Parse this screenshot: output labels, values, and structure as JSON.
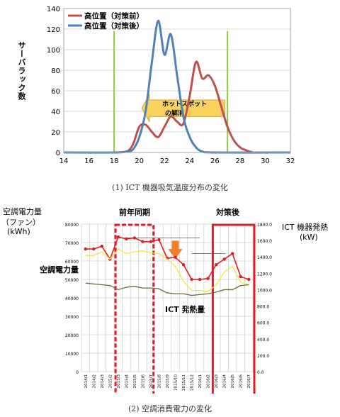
{
  "chart_data": [
    {
      "type": "line",
      "ylabel": "サーバラック数",
      "xlim": [
        14,
        32
      ],
      "ylim": [
        0,
        140
      ],
      "xticks": [
        14,
        16,
        18,
        20,
        22,
        24,
        26,
        28,
        30,
        32
      ],
      "yticks": [
        0,
        20,
        40,
        60,
        80,
        100,
        120,
        140
      ],
      "legend": "top-left",
      "series": [
        {
          "name": "高位置（対策前）",
          "color": "#c0504d",
          "x": [
            18.0,
            19.0,
            19.5,
            20.0,
            20.5,
            21.0,
            21.5,
            22.0,
            22.5,
            23.0,
            23.5,
            24.0,
            24.5,
            25.0,
            25.5,
            26.0,
            26.5,
            27.0,
            27.5,
            28.0,
            28.5,
            29.0
          ],
          "y": [
            0,
            1,
            8,
            25,
            27,
            20,
            15,
            25,
            35,
            30,
            28,
            55,
            88,
            72,
            75,
            65,
            45,
            25,
            12,
            5,
            2,
            0
          ]
        },
        {
          "name": "高位置（対策後）",
          "color": "#4f81bd",
          "x": [
            14.0,
            18.0,
            19.0,
            19.5,
            20.0,
            20.5,
            21.0,
            21.5,
            22.0,
            22.5,
            23.0,
            23.5,
            24.0,
            24.5,
            25.0,
            26.0,
            32.0
          ],
          "y": [
            0,
            0,
            1,
            3,
            15,
            40,
            88,
            128,
            95,
            115,
            75,
            35,
            15,
            5,
            1,
            0,
            0
          ]
        }
      ],
      "vlines": [
        18,
        27
      ],
      "annotation": "ホットスポットの解消"
    },
    {
      "type": "line",
      "left_axis": {
        "label_lines": [
          "空調電力量",
          "（ファン）",
          "(kWh)"
        ],
        "ylim": [
          0,
          80000
        ],
        "ticks": [
          "0",
          "10000",
          "20000",
          "30000",
          "40000",
          "50000",
          "60000",
          "70000",
          "80000"
        ]
      },
      "right_axis": {
        "label_lines": [
          "ICT 機器発熱",
          "(kW)"
        ],
        "ylim": [
          0,
          1800
        ],
        "ticks": [
          "0.0",
          "200.0",
          "400.0",
          "600.0",
          "800.0",
          "1000.0",
          "1200.0",
          "1400.0",
          "1600.0",
          "1800.0"
        ]
      },
      "categories": [
        "2014/1",
        "2014/2",
        "2014/3",
        "2015/2",
        "2015/3",
        "2015/4",
        "2015/5",
        "2015/6",
        "2015/7",
        "2015/8",
        "2015/9",
        "2015/10",
        "2015/11",
        "2015/12",
        "2016/1",
        "2016/2",
        "2016/3",
        "2016/4",
        "2016/5",
        "2016/6",
        "2016/7"
      ],
      "series": [
        {
          "name": "空調電力量",
          "color": "#e31b23",
          "axis": "left",
          "values": [
            66500,
            66500,
            68000,
            61000,
            73000,
            72000,
            72500,
            70500,
            70500,
            71500,
            61500,
            62000,
            58000,
            50000,
            50000,
            50500,
            58000,
            61000,
            64000,
            51500,
            50000
          ]
        },
        {
          "name": "",
          "color": "#f5e642",
          "axis": "left",
          "values": [
            63000,
            63000,
            65000,
            61000,
            66500,
            64000,
            65000,
            65500,
            64500,
            64000,
            61000,
            57000,
            49000,
            44000,
            44000,
            43500,
            47000,
            54000,
            57000,
            48500,
            47000
          ]
        },
        {
          "name": "ICT 発熱量",
          "color": "#6b6b3f",
          "axis": "right",
          "values": [
            1080,
            1070,
            1060,
            1050,
            1000,
            1030,
            1040,
            1020,
            1020,
            1010,
            960,
            950,
            950,
            930,
            940,
            950,
            970,
            1000,
            1000,
            1050,
            1060
          ]
        }
      ],
      "highlight_labels": {
        "before": "前年同期",
        "after": "対策後"
      }
    }
  ],
  "captions": {
    "top": "(1) ICT 機器吸気温度分布の変化",
    "bottom": "(2) 空調消費電力の変化"
  }
}
